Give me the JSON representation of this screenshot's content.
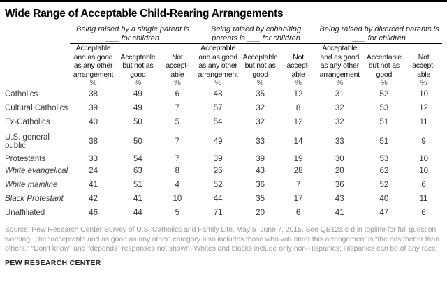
{
  "title": "Wide Range of Acceptable Child-Rearing Arrangements",
  "header": {
    "unit": "%",
    "groups": [
      {
        "title": "Being raised by a single parent is\n___ for children",
        "columns": [
          "Acceptable\nand as good\nas any other\narrangement",
          "Acceptable\nbut not as\ngood",
          "Not\naccept-\nable"
        ]
      },
      {
        "title": "Being raised by cohabiting\nparents is ___ for children",
        "columns": [
          "Acceptable\nand as good\nas any other\narrangement",
          "Acceptable\nbut not as\ngood",
          "Not\naccept-\nable"
        ]
      },
      {
        "title": "Being raised by divorced parents is\n___ for children",
        "columns": [
          "Acceptable\nand as good\nas any other\narrangement",
          "Acceptable\nbut not as\ngood",
          "Not\naccept-\nable"
        ]
      }
    ]
  },
  "rows": [
    {
      "label": "Catholics",
      "style": "normal",
      "gap_before": false,
      "values": [
        38,
        49,
        6,
        48,
        35,
        12,
        31,
        52,
        10
      ]
    },
    {
      "label": "Cultural Catholics",
      "style": "normal",
      "gap_before": false,
      "values": [
        39,
        49,
        7,
        57,
        32,
        8,
        32,
        53,
        12
      ]
    },
    {
      "label": "Ex-Catholics",
      "style": "normal",
      "gap_before": false,
      "values": [
        40,
        50,
        5,
        54,
        32,
        12,
        32,
        51,
        11
      ]
    },
    {
      "label": "U.S. general public",
      "style": "normal",
      "gap_before": true,
      "values": [
        38,
        50,
        7,
        49,
        33,
        14,
        33,
        51,
        9
      ]
    },
    {
      "label": "Protestants",
      "style": "normal",
      "gap_before": true,
      "values": [
        33,
        54,
        7,
        39,
        39,
        19,
        30,
        53,
        10
      ]
    },
    {
      "label": "White evangelical",
      "style": "sub",
      "gap_before": false,
      "values": [
        24,
        63,
        8,
        26,
        43,
        28,
        20,
        62,
        10
      ]
    },
    {
      "label": "White mainline",
      "style": "sub",
      "gap_before": false,
      "values": [
        41,
        51,
        4,
        52,
        36,
        7,
        36,
        52,
        6
      ]
    },
    {
      "label": "Black Protestant",
      "style": "sub",
      "gap_before": false,
      "values": [
        42,
        41,
        10,
        44,
        35,
        17,
        43,
        40,
        11
      ]
    },
    {
      "label": "Unaffiliated",
      "style": "normal",
      "gap_before": false,
      "values": [
        46,
        44,
        5,
        71,
        20,
        6,
        41,
        47,
        6
      ]
    }
  ],
  "source_note": "Source: Pew Research Center Survey of U.S. Catholics and Family Life, May 5–June 7, 2015. See QB12a,c-d in topline for full question wording. The “acceptable and as good as any other” category also includes those who volunteer this arrangement is “the best/better than others.” “Don’t know” and “depends” responses not shown. Whites and blacks include only non-Hispanics; Hispanics can be of any race.",
  "footer": "PEW RESEARCH CENTER",
  "colors": {
    "accent_bar": "#000000",
    "body_text": "#333333",
    "source_text": "#9a9a9a",
    "bottom_divider": "#cfcfcf"
  },
  "chart_data": {
    "type": "table",
    "title": "Wide Range of Acceptable Child-Rearing Arrangements",
    "unit": "%",
    "row_labels": [
      "Catholics",
      "Cultural Catholics",
      "Ex-Catholics",
      "U.S. general public",
      "Protestants",
      "White evangelical",
      "White mainline",
      "Black Protestant",
      "Unaffiliated"
    ],
    "column_groups": [
      {
        "label": "Being raised by a single parent is ___ for children",
        "columns": [
          "Acceptable and as good as any other arrangement",
          "Acceptable but not as good",
          "Not acceptable"
        ],
        "values": [
          [
            38,
            49,
            6
          ],
          [
            39,
            49,
            7
          ],
          [
            40,
            50,
            5
          ],
          [
            38,
            50,
            7
          ],
          [
            33,
            54,
            7
          ],
          [
            24,
            63,
            8
          ],
          [
            41,
            51,
            4
          ],
          [
            42,
            41,
            10
          ],
          [
            46,
            44,
            5
          ]
        ]
      },
      {
        "label": "Being raised by cohabiting parents is ___ for children",
        "columns": [
          "Acceptable and as good as any other arrangement",
          "Acceptable but not as good",
          "Not acceptable"
        ],
        "values": [
          [
            48,
            35,
            12
          ],
          [
            57,
            32,
            8
          ],
          [
            54,
            32,
            12
          ],
          [
            49,
            33,
            14
          ],
          [
            39,
            39,
            19
          ],
          [
            26,
            43,
            28
          ],
          [
            52,
            36,
            7
          ],
          [
            44,
            35,
            17
          ],
          [
            71,
            20,
            6
          ]
        ]
      },
      {
        "label": "Being raised by divorced parents is ___ for children",
        "columns": [
          "Acceptable and as good as any other arrangement",
          "Acceptable but not as good",
          "Not acceptable"
        ],
        "values": [
          [
            31,
            52,
            10
          ],
          [
            32,
            53,
            12
          ],
          [
            32,
            51,
            11
          ],
          [
            33,
            51,
            9
          ],
          [
            30,
            53,
            10
          ],
          [
            20,
            62,
            10
          ],
          [
            36,
            52,
            6
          ],
          [
            43,
            40,
            11
          ],
          [
            41,
            47,
            6
          ]
        ]
      }
    ]
  }
}
